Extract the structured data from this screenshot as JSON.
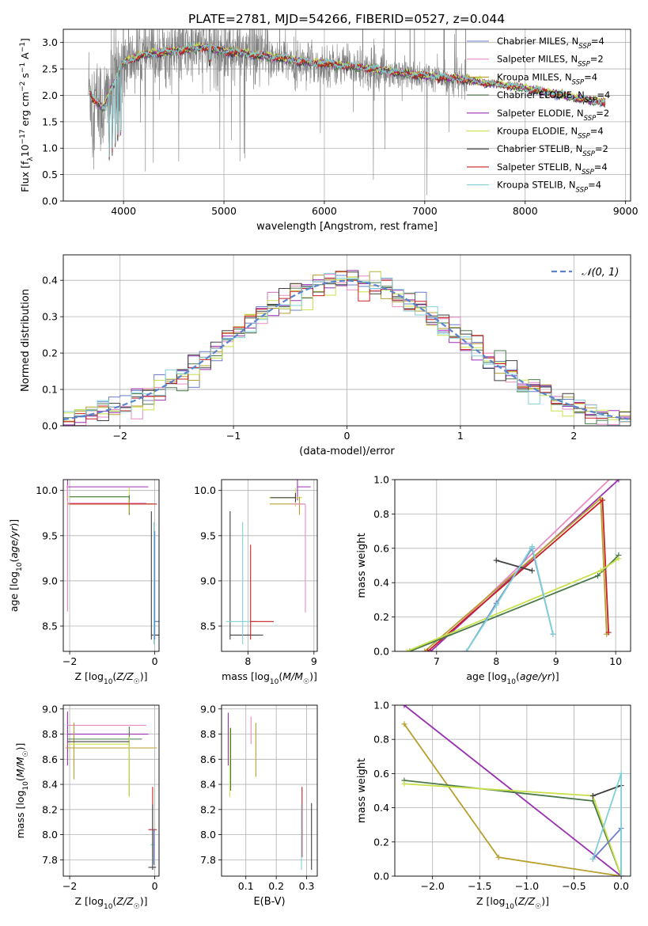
{
  "figure_title": "PLATE=2781, MJD=54266, FIBERID=0527, z=0.044",
  "series_colors": [
    "#6a7fc8",
    "#e88bc4",
    "#b8a030",
    "#4a7a4a",
    "#9a2fb0",
    "#c8e04a",
    "#404040",
    "#c82020",
    "#80d0d8"
  ],
  "chart_data": [
    {
      "type": "line",
      "id": "spectrum",
      "title": "PLATE=2781, MJD=54266, FIBERID=0527, z=0.044",
      "xlabel": "wavelength [Angstrom, rest frame]",
      "ylabel": "Flux [f_λ 10^-17 erg cm^-2 s^-1 A^-1]",
      "xlim": [
        3400,
        9050
      ],
      "ylim": [
        0,
        3.25
      ],
      "xticks": [
        4000,
        5000,
        6000,
        7000,
        8000,
        9000
      ],
      "yticks": [
        0.0,
        0.5,
        1.0,
        1.5,
        2.0,
        2.5,
        3.0
      ],
      "legend_position": "top-right",
      "data_color": "#808080",
      "data_knots": {
        "x": [
          3650,
          3700,
          3800,
          3900,
          4000,
          4200,
          4400,
          4600,
          4800,
          5000,
          5200,
          5400,
          5600,
          5800,
          6000,
          6200,
          6400,
          6600,
          6800,
          7000,
          7200,
          7400,
          7600,
          7800,
          8000,
          8200,
          8400,
          8600,
          8800
        ],
        "y": [
          2.15,
          1.9,
          1.75,
          2.2,
          2.6,
          2.75,
          2.8,
          2.85,
          2.9,
          2.82,
          2.78,
          2.72,
          2.68,
          2.62,
          2.58,
          2.55,
          2.5,
          2.45,
          2.4,
          2.35,
          2.32,
          2.28,
          2.22,
          2.18,
          2.12,
          2.05,
          1.98,
          1.9,
          1.85
        ]
      },
      "series": [
        {
          "name": "Chabrier MILES",
          "n_ssp": "4"
        },
        {
          "name": "Salpeter MILES",
          "n_ssp": "2"
        },
        {
          "name": "Kroupa MILES",
          "n_ssp": "4"
        },
        {
          "name": "Chabrier ELODIE",
          "n_ssp": "4"
        },
        {
          "name": "Salpeter ELODIE",
          "n_ssp": "2"
        },
        {
          "name": "Kroupa ELODIE",
          "n_ssp": "4"
        },
        {
          "name": "Chabrier STELIB",
          "n_ssp": "2"
        },
        {
          "name": "Salpeter STELIB",
          "n_ssp": "4"
        },
        {
          "name": "Kroupa STELIB",
          "n_ssp": "4"
        }
      ]
    },
    {
      "type": "histogram",
      "id": "residuals",
      "xlabel": "(data-model)/error",
      "ylabel": "Normed distribution",
      "xlim": [
        -2.5,
        2.5
      ],
      "ylim": [
        0,
        0.47
      ],
      "xticks": [
        -2,
        -1,
        0,
        1,
        2
      ],
      "yticks": [
        0.0,
        0.1,
        0.2,
        0.3,
        0.4
      ],
      "legend_position": "top-right",
      "gaussian_label": "𝒩(0, 1)",
      "gaussian_color": "#5b84d0",
      "bin_width": 0.1
    },
    {
      "type": "errorbar",
      "id": "age-vs-Z",
      "xlabel": "Z [log10(Z/Z☉)]",
      "ylabel": "age  [log10(age/yr)]",
      "xlim": [
        -2.15,
        0.1
      ],
      "ylim": [
        8.22,
        10.12
      ],
      "xticks": [
        -2,
        0
      ],
      "yticks": [
        8.5,
        9.0,
        9.5,
        10.0
      ]
    },
    {
      "type": "errorbar",
      "id": "age-vs-mass",
      "xlabel": "mass [log10(M/M☉)]",
      "ylabel": "",
      "xlim": [
        7.6,
        9.05
      ],
      "ylim": [
        8.22,
        10.12
      ],
      "xticks": [
        8,
        9
      ],
      "yticks": [
        8.5,
        9.0,
        9.5,
        10.0
      ]
    },
    {
      "type": "line",
      "id": "massweight-vs-age",
      "xlabel": "age  [log10(age/yr)]",
      "ylabel": "mass weight",
      "xlim": [
        6.3,
        10.25
      ],
      "ylim": [
        0,
        1.0
      ],
      "xticks": [
        7,
        8,
        9,
        10
      ],
      "yticks": [
        0.0,
        0.2,
        0.4,
        0.6,
        0.8,
        1.0
      ]
    },
    {
      "type": "errorbar",
      "id": "mass-vs-Z",
      "xlabel": "Z [log10(Z/Z☉)]",
      "ylabel": "mass [log10(M/M☉)]",
      "xlim": [
        -2.15,
        0.1
      ],
      "ylim": [
        7.67,
        9.03
      ],
      "xticks": [
        -2,
        0
      ],
      "yticks": [
        7.8,
        8.0,
        8.2,
        8.4,
        8.6,
        8.8,
        9.0
      ]
    },
    {
      "type": "errorbar",
      "id": "mass-vs-ebv",
      "xlabel": "E(B-V)",
      "ylabel": "",
      "xlim": [
        0.02,
        0.335
      ],
      "ylim": [
        7.67,
        9.03
      ],
      "xticks": [
        0.1,
        0.2,
        0.3
      ],
      "yticks": [
        7.8,
        8.0,
        8.2,
        8.4,
        8.6,
        8.8,
        9.0
      ]
    },
    {
      "type": "line",
      "id": "massweight-vs-Z",
      "xlabel": "Z [log10(Z/Z☉)]",
      "ylabel": "mass weight",
      "xlim": [
        -2.4,
        0.1
      ],
      "ylim": [
        0,
        1.0
      ],
      "xticks": [
        -2.0,
        -1.5,
        -1.0,
        -0.5,
        0.0
      ],
      "yticks": [
        0.0,
        0.2,
        0.4,
        0.6,
        0.8,
        1.0
      ]
    }
  ]
}
